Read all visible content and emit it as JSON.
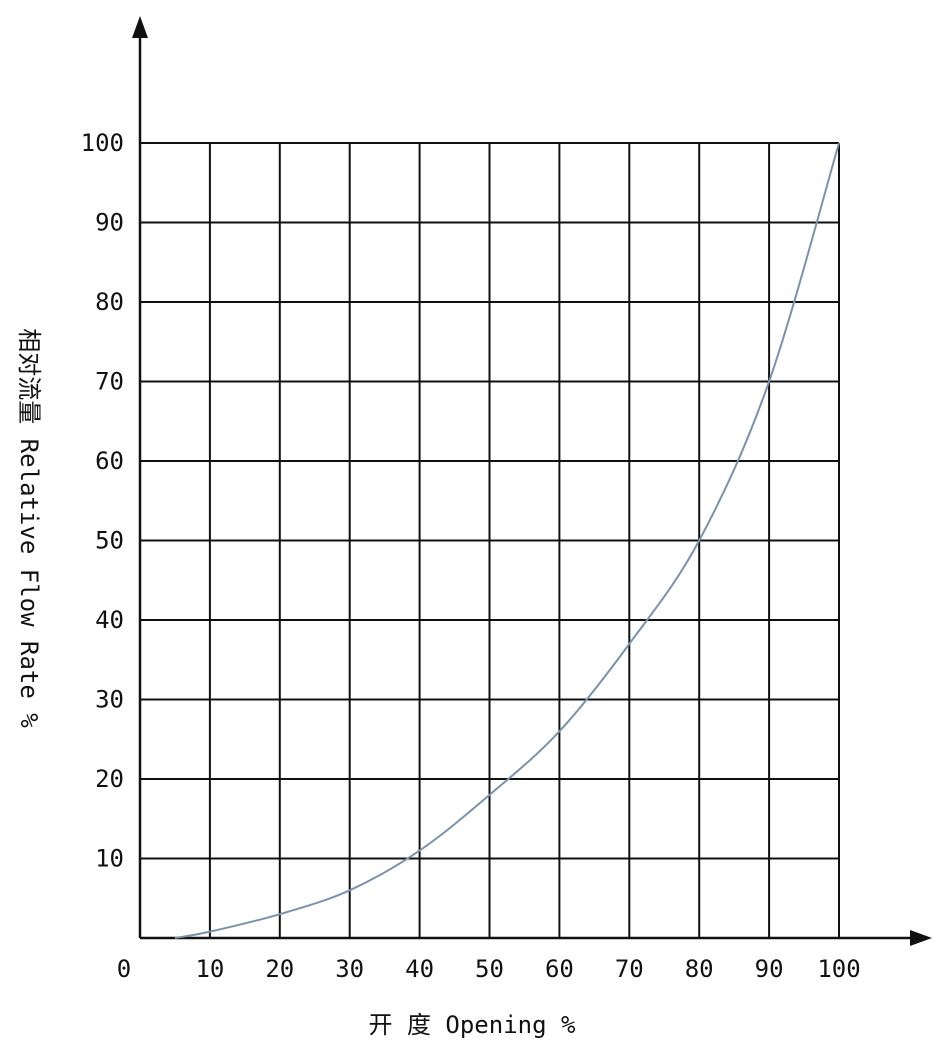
{
  "chart_data": {
    "type": "line",
    "xlabel": "开 度 Opening %",
    "ylabel": "相对流量 Relative Flow Rate %",
    "xlim": [
      0,
      100
    ],
    "ylim": [
      0,
      100
    ],
    "x_ticks": [
      0,
      10,
      20,
      30,
      40,
      50,
      60,
      70,
      80,
      90,
      100
    ],
    "y_ticks": [
      10,
      20,
      30,
      40,
      50,
      60,
      70,
      80,
      90,
      100
    ],
    "grid": true,
    "series": [
      {
        "x": [
          5,
          10,
          20,
          30,
          40,
          50,
          60,
          70,
          80,
          90,
          100
        ],
        "y": [
          0,
          0.8,
          3,
          6,
          11,
          18,
          26,
          37,
          50,
          70,
          100
        ]
      }
    ],
    "colors": {
      "curve": "#7a93ad",
      "grid": "#111111",
      "axis": "#111111"
    }
  }
}
